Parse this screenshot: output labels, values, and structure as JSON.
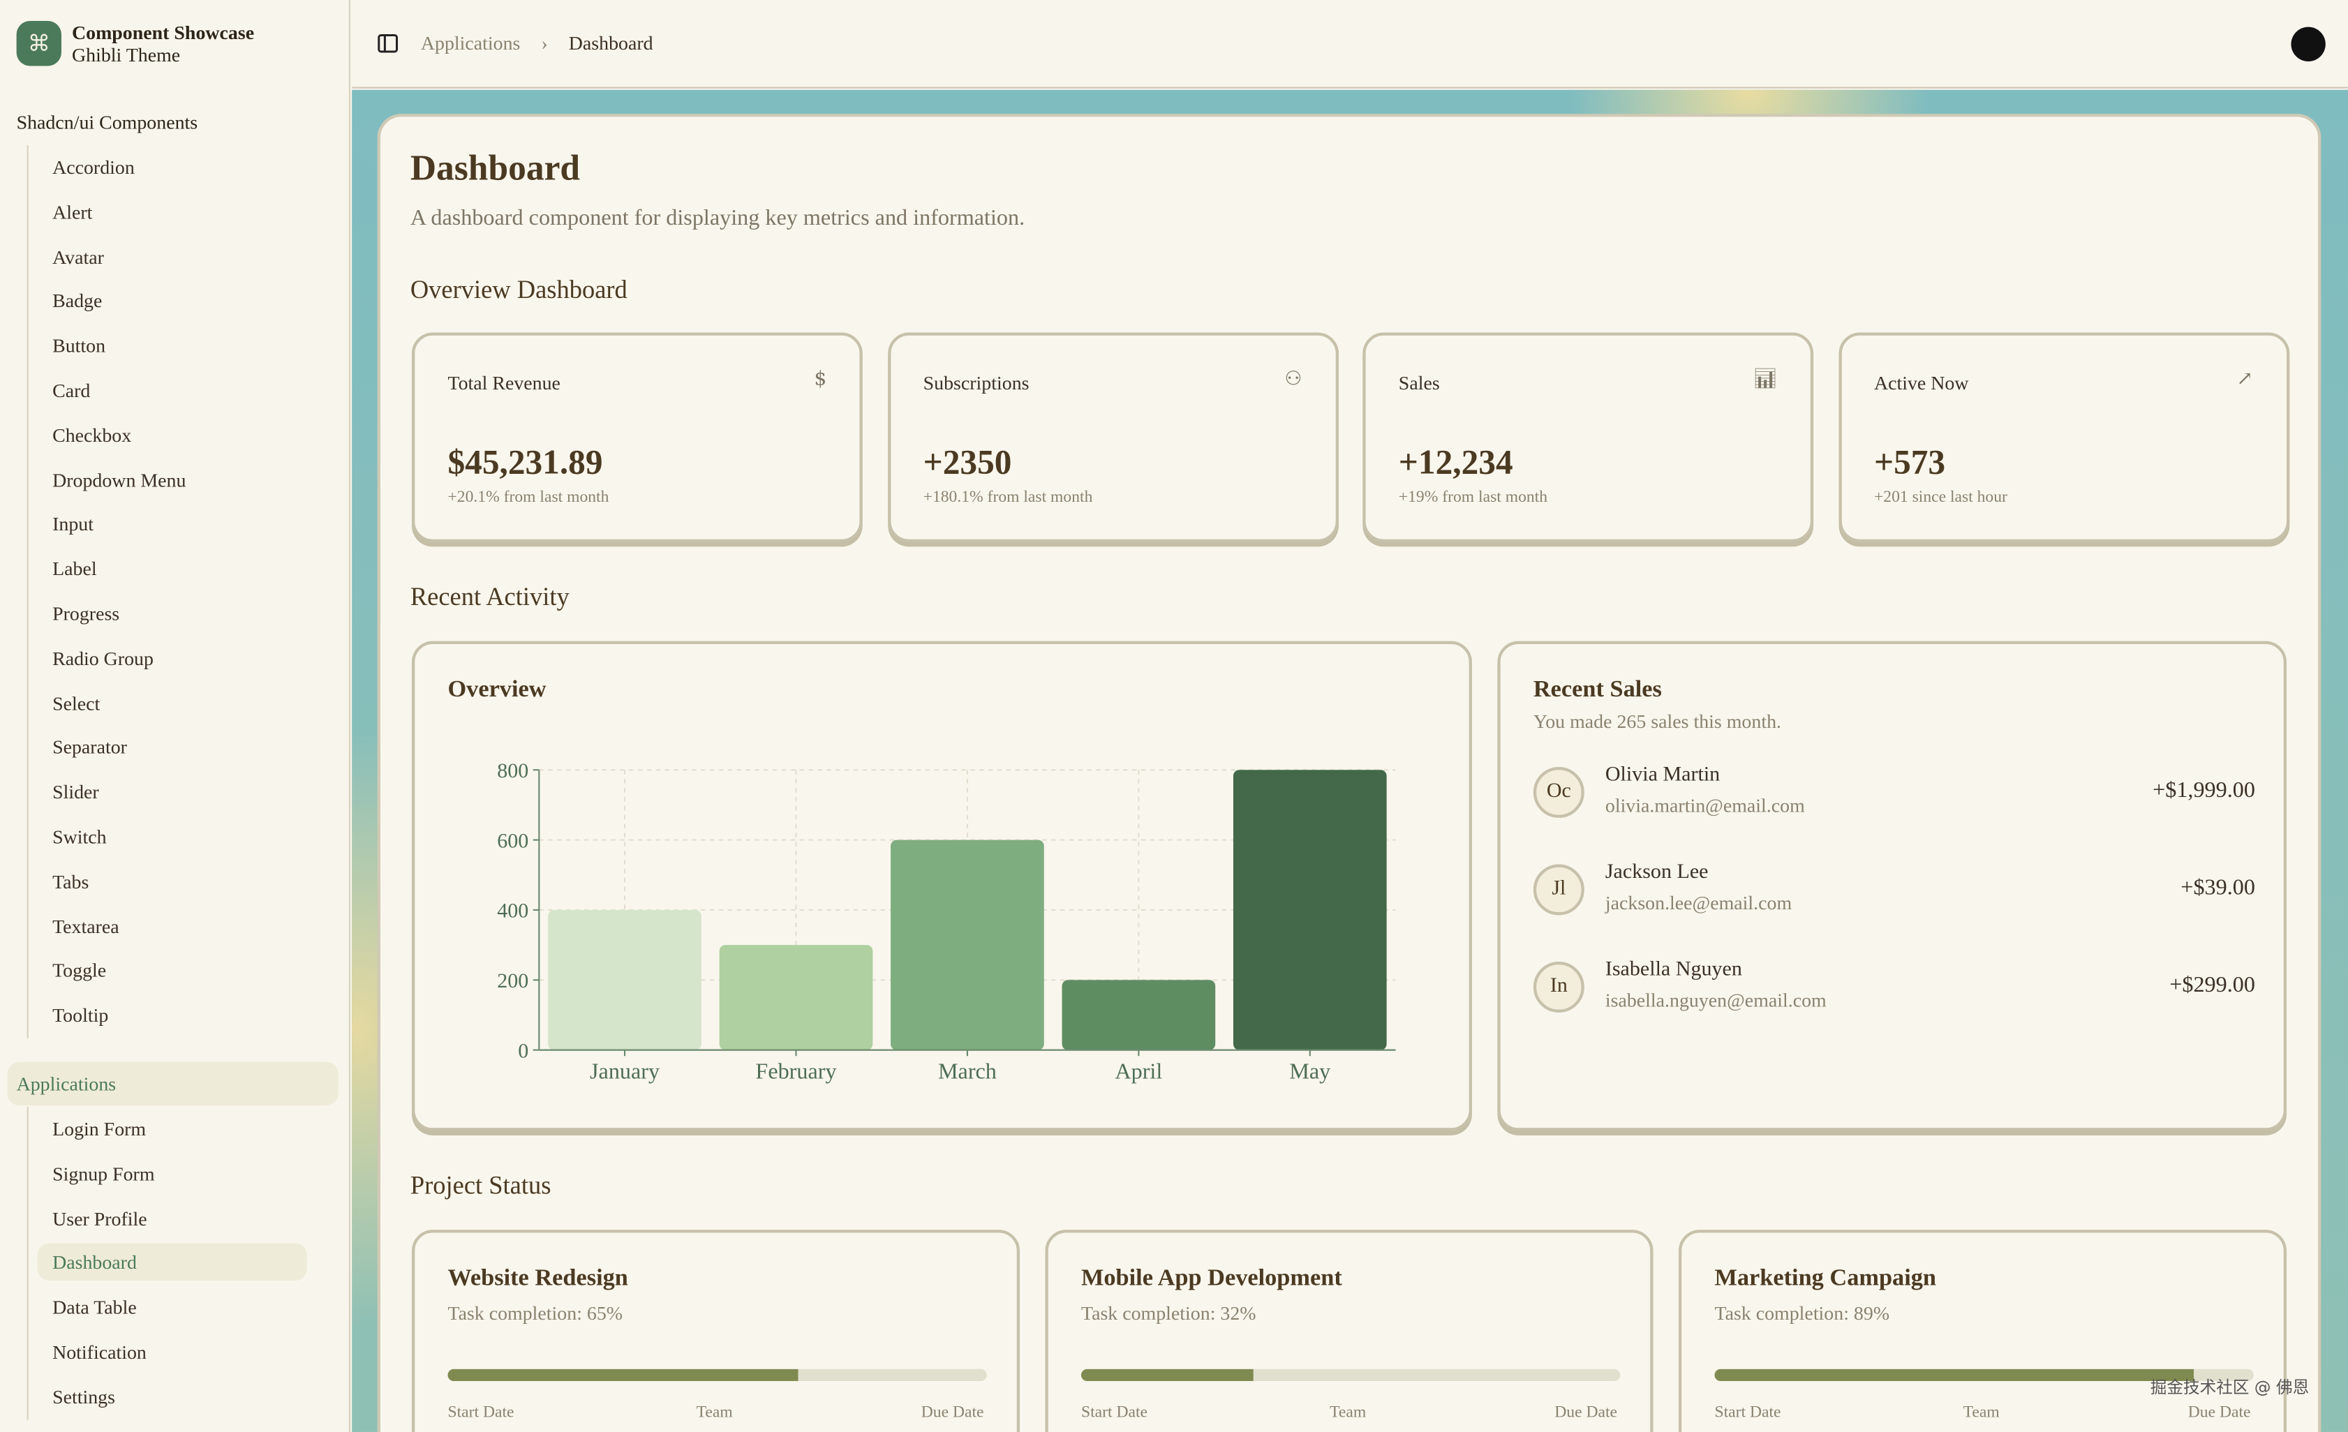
{
  "brand": {
    "title": "Component Showcase",
    "subtitle": "Ghibli Theme",
    "logo_icon": "command-icon"
  },
  "sidebar": {
    "group1_label": "Shadcn/ui Components",
    "components": [
      "Accordion",
      "Alert",
      "Avatar",
      "Badge",
      "Button",
      "Card",
      "Checkbox",
      "Dropdown Menu",
      "Input",
      "Label",
      "Progress",
      "Radio Group",
      "Select",
      "Separator",
      "Slider",
      "Switch",
      "Tabs",
      "Textarea",
      "Toggle",
      "Tooltip"
    ],
    "group2_label": "Applications",
    "applications": [
      "Login Form",
      "Signup Form",
      "User Profile",
      "Dashboard",
      "Data Table",
      "Notification",
      "Settings"
    ],
    "active": "Dashboard"
  },
  "breadcrumb": {
    "parent": "Applications",
    "separator": "›",
    "current": "Dashboard"
  },
  "page": {
    "title": "Dashboard",
    "description": "A dashboard component for displaying key metrics and information."
  },
  "sections": {
    "overview": "Overview Dashboard",
    "activity": "Recent Activity",
    "projects": "Project Status"
  },
  "stats": [
    {
      "title": "Total Revenue",
      "icon": "dollar-icon",
      "value": "$45,231.89",
      "change": "+20.1% from last month"
    },
    {
      "title": "Subscriptions",
      "icon": "users-icon",
      "value": "+2350",
      "change": "+180.1% from last month"
    },
    {
      "title": "Sales",
      "icon": "bar-chart-icon",
      "value": "+12,234",
      "change": "+19% from last month"
    },
    {
      "title": "Active Now",
      "icon": "arrow-up-right-icon",
      "value": "+573",
      "change": "+201 since last hour"
    }
  ],
  "overview_card": {
    "title": "Overview"
  },
  "chart_data": {
    "type": "bar",
    "categories": [
      "January",
      "February",
      "March",
      "April",
      "May"
    ],
    "values": [
      400,
      300,
      600,
      200,
      800
    ],
    "ylim": [
      0,
      800
    ],
    "yticks": [
      0,
      200,
      400,
      600,
      800
    ],
    "grid": true,
    "colors": [
      "#d5e5cb",
      "#afd0a0",
      "#7ead80",
      "#5e8d62",
      "#43694a"
    ]
  },
  "recent_sales": {
    "title": "Recent Sales",
    "subtitle": "You made 265 sales this month.",
    "items": [
      {
        "initials": "Oc",
        "name": "Olivia Martin",
        "email": "olivia.martin@email.com",
        "amount": "+$1,999.00"
      },
      {
        "initials": "Jl",
        "name": "Jackson Lee",
        "email": "jackson.lee@email.com",
        "amount": "+$39.00"
      },
      {
        "initials": "In",
        "name": "Isabella Nguyen",
        "email": "isabella.nguyen@email.com",
        "amount": "+$299.00"
      }
    ]
  },
  "projects": [
    {
      "title": "Website Redesign",
      "completion_label": "Task completion: 65%",
      "progress": 65
    },
    {
      "title": "Mobile App Development",
      "completion_label": "Task completion: 32%",
      "progress": 32
    },
    {
      "title": "Marketing Campaign",
      "completion_label": "Task completion: 89%",
      "progress": 89
    }
  ],
  "project_meta": {
    "start": "Start Date",
    "team": "Team",
    "due": "Due Date"
  },
  "watermark": "掘金技术社区 @ 佛恩"
}
